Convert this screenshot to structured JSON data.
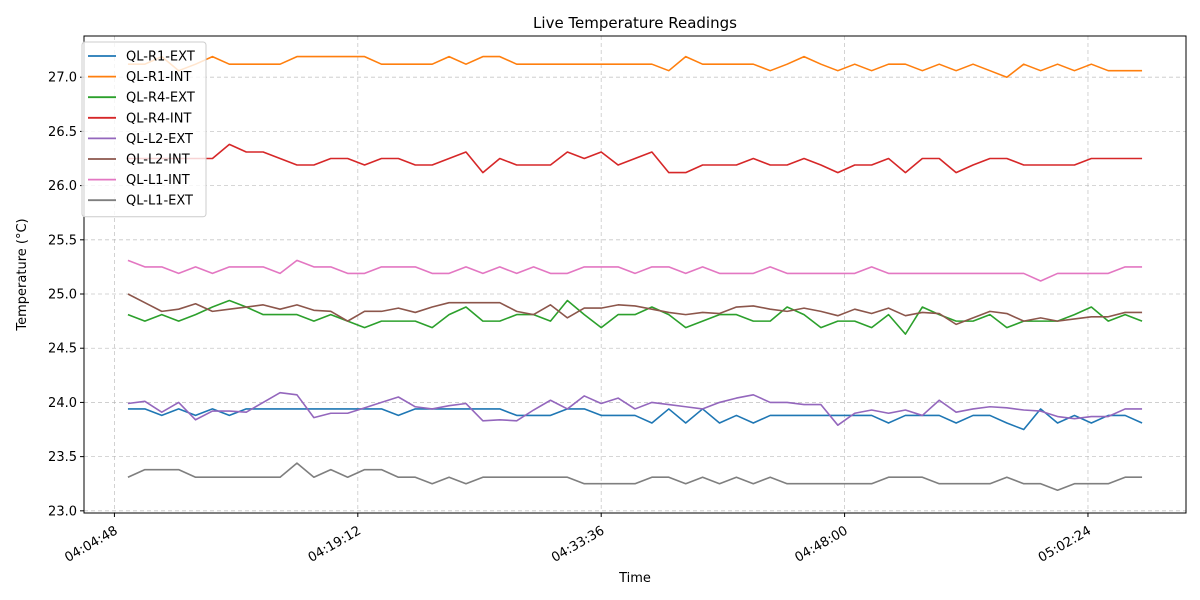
{
  "chart_data": {
    "type": "line",
    "title": "Live Temperature Readings",
    "xlabel": "Time",
    "ylabel": "Temperature (°C)",
    "x_tick_labels": [
      "04:04:48",
      "04:19:12",
      "04:33:36",
      "04:48:00",
      "05:02:24"
    ],
    "y_ticks": [
      23.0,
      23.5,
      24.0,
      24.5,
      25.0,
      25.5,
      26.0,
      26.5,
      27.0
    ],
    "ylim": [
      22.98,
      27.38
    ],
    "grid": true,
    "legend_position": "top-left",
    "x": [
      "04:05:36",
      "04:06:36",
      "04:07:36",
      "04:08:36",
      "04:09:36",
      "04:10:36",
      "04:11:36",
      "04:12:36",
      "04:13:36",
      "04:14:36",
      "04:15:36",
      "04:16:36",
      "04:17:36",
      "04:18:36",
      "04:19:36",
      "04:20:36",
      "04:21:36",
      "04:22:36",
      "04:23:36",
      "04:24:36",
      "04:25:36",
      "04:26:36",
      "04:27:36",
      "04:28:36",
      "04:29:36",
      "04:30:36",
      "04:31:36",
      "04:32:36",
      "04:33:36",
      "04:34:36",
      "04:35:36",
      "04:36:36",
      "04:37:36",
      "04:38:36",
      "04:39:36",
      "04:40:36",
      "04:41:36",
      "04:42:36",
      "04:43:36",
      "04:44:36",
      "04:45:36",
      "04:46:36",
      "04:47:36",
      "04:48:36",
      "04:49:36",
      "04:50:36",
      "04:51:36",
      "04:52:36",
      "04:53:36",
      "04:54:36",
      "04:55:36",
      "04:56:36",
      "04:57:36",
      "04:58:36",
      "04:59:36",
      "05:00:36",
      "05:01:36",
      "05:02:36",
      "05:03:36",
      "05:04:36",
      "05:05:36"
    ],
    "series": [
      {
        "name": "QL-R1-EXT",
        "color": "#1f77b4",
        "values": [
          23.94,
          23.94,
          23.88,
          23.94,
          23.88,
          23.94,
          23.88,
          23.94,
          23.94,
          23.94,
          23.94,
          23.94,
          23.94,
          23.94,
          23.94,
          23.94,
          23.88,
          23.94,
          23.94,
          23.94,
          23.94,
          23.94,
          23.94,
          23.88,
          23.88,
          23.88,
          23.94,
          23.94,
          23.88,
          23.88,
          23.88,
          23.81,
          23.94,
          23.81,
          23.94,
          23.81,
          23.88,
          23.81,
          23.88,
          23.88,
          23.88,
          23.88,
          23.88,
          23.88,
          23.88,
          23.81,
          23.88,
          23.88,
          23.88,
          23.81,
          23.88,
          23.88,
          23.81,
          23.75,
          23.94,
          23.81,
          23.88,
          23.81,
          23.88,
          23.88,
          23.81
        ]
      },
      {
        "name": "QL-R1-INT",
        "color": "#ff7f0e",
        "values": [
          27.12,
          27.12,
          27.19,
          27.06,
          27.12,
          27.19,
          27.12,
          27.12,
          27.12,
          27.12,
          27.19,
          27.19,
          27.19,
          27.19,
          27.19,
          27.12,
          27.12,
          27.12,
          27.12,
          27.19,
          27.12,
          27.19,
          27.19,
          27.12,
          27.12,
          27.12,
          27.12,
          27.12,
          27.12,
          27.12,
          27.12,
          27.12,
          27.06,
          27.19,
          27.12,
          27.12,
          27.12,
          27.12,
          27.06,
          27.12,
          27.19,
          27.12,
          27.06,
          27.12,
          27.06,
          27.12,
          27.12,
          27.06,
          27.12,
          27.06,
          27.12,
          27.06,
          27.0,
          27.12,
          27.06,
          27.12,
          27.06,
          27.12,
          27.06,
          27.06,
          27.06
        ]
      },
      {
        "name": "QL-R4-EXT",
        "color": "#2ca02c",
        "values": [
          24.81,
          24.75,
          24.81,
          24.75,
          24.81,
          24.88,
          24.94,
          24.88,
          24.81,
          24.81,
          24.81,
          24.75,
          24.81,
          24.75,
          24.69,
          24.75,
          24.75,
          24.75,
          24.69,
          24.81,
          24.88,
          24.75,
          24.75,
          24.81,
          24.81,
          24.75,
          24.94,
          24.81,
          24.69,
          24.81,
          24.81,
          24.88,
          24.81,
          24.69,
          24.75,
          24.81,
          24.81,
          24.75,
          24.75,
          24.88,
          24.81,
          24.69,
          24.75,
          24.75,
          24.69,
          24.81,
          24.63,
          24.88,
          24.81,
          24.75,
          24.75,
          24.81,
          24.69,
          24.75,
          24.75,
          24.75,
          24.81,
          24.88,
          24.75,
          24.81,
          24.75
        ]
      },
      {
        "name": "QL-R4-INT",
        "color": "#d62728",
        "values": [
          26.25,
          26.25,
          26.25,
          26.25,
          26.25,
          26.25,
          26.38,
          26.31,
          26.31,
          26.25,
          26.19,
          26.19,
          26.25,
          26.25,
          26.19,
          26.25,
          26.25,
          26.19,
          26.19,
          26.25,
          26.31,
          26.12,
          26.25,
          26.19,
          26.19,
          26.19,
          26.31,
          26.25,
          26.31,
          26.19,
          26.25,
          26.31,
          26.12,
          26.12,
          26.19,
          26.19,
          26.19,
          26.25,
          26.19,
          26.19,
          26.25,
          26.19,
          26.12,
          26.19,
          26.19,
          26.25,
          26.12,
          26.25,
          26.25,
          26.12,
          26.19,
          26.25,
          26.25,
          26.19,
          26.19,
          26.19,
          26.19,
          26.25,
          26.25,
          26.25,
          26.25
        ]
      },
      {
        "name": "QL-L2-EXT",
        "color": "#9467bd",
        "values": [
          23.99,
          24.01,
          23.91,
          24.0,
          23.84,
          23.92,
          23.92,
          23.91,
          24.0,
          24.09,
          24.07,
          23.86,
          23.9,
          23.9,
          23.95,
          24.0,
          24.05,
          23.96,
          23.94,
          23.97,
          23.99,
          23.83,
          23.84,
          23.83,
          23.93,
          24.02,
          23.94,
          24.06,
          23.99,
          24.04,
          23.94,
          24.0,
          23.98,
          23.96,
          23.94,
          24.0,
          24.04,
          24.07,
          24.0,
          24.0,
          23.98,
          23.98,
          23.79,
          23.9,
          23.93,
          23.9,
          23.93,
          23.88,
          24.02,
          23.91,
          23.94,
          23.96,
          23.95,
          23.93,
          23.92,
          23.87,
          23.85,
          23.87,
          23.87,
          23.94,
          23.94
        ]
      },
      {
        "name": "QL-L2-INT",
        "color": "#8c564b",
        "values": [
          25.0,
          24.92,
          24.84,
          24.86,
          24.91,
          24.84,
          24.86,
          24.88,
          24.9,
          24.86,
          24.9,
          24.85,
          24.84,
          24.75,
          24.84,
          24.84,
          24.87,
          24.83,
          24.88,
          24.92,
          24.92,
          24.92,
          24.92,
          24.84,
          24.81,
          24.9,
          24.78,
          24.87,
          24.87,
          24.9,
          24.89,
          24.86,
          24.83,
          24.81,
          24.83,
          24.82,
          24.88,
          24.89,
          24.86,
          24.84,
          24.87,
          24.84,
          24.8,
          24.86,
          24.82,
          24.87,
          24.8,
          24.83,
          24.82,
          24.72,
          24.78,
          24.84,
          24.82,
          24.75,
          24.78,
          24.75,
          24.77,
          24.79,
          24.79,
          24.83,
          24.83
        ]
      },
      {
        "name": "QL-L1-INT",
        "color": "#e377c2",
        "values": [
          25.31,
          25.25,
          25.25,
          25.19,
          25.25,
          25.19,
          25.25,
          25.25,
          25.25,
          25.19,
          25.31,
          25.25,
          25.25,
          25.19,
          25.19,
          25.25,
          25.25,
          25.25,
          25.19,
          25.19,
          25.25,
          25.19,
          25.25,
          25.19,
          25.25,
          25.19,
          25.19,
          25.25,
          25.25,
          25.25,
          25.19,
          25.25,
          25.25,
          25.19,
          25.25,
          25.19,
          25.19,
          25.19,
          25.25,
          25.19,
          25.19,
          25.19,
          25.19,
          25.19,
          25.25,
          25.19,
          25.19,
          25.19,
          25.19,
          25.19,
          25.19,
          25.19,
          25.19,
          25.19,
          25.12,
          25.19,
          25.19,
          25.19,
          25.19,
          25.25,
          25.25
        ]
      },
      {
        "name": "QL-L1-EXT",
        "color": "#7f7f7f",
        "values": [
          23.31,
          23.38,
          23.38,
          23.38,
          23.31,
          23.31,
          23.31,
          23.31,
          23.31,
          23.31,
          23.44,
          23.31,
          23.38,
          23.31,
          23.38,
          23.38,
          23.31,
          23.31,
          23.25,
          23.31,
          23.25,
          23.31,
          23.31,
          23.31,
          23.31,
          23.31,
          23.31,
          23.25,
          23.25,
          23.25,
          23.25,
          23.31,
          23.31,
          23.25,
          23.31,
          23.25,
          23.31,
          23.25,
          23.31,
          23.25,
          23.25,
          23.25,
          23.25,
          23.25,
          23.25,
          23.31,
          23.31,
          23.31,
          23.25,
          23.25,
          23.25,
          23.25,
          23.31,
          23.25,
          23.25,
          23.19,
          23.25,
          23.25,
          23.25,
          23.31,
          23.31
        ]
      }
    ]
  }
}
